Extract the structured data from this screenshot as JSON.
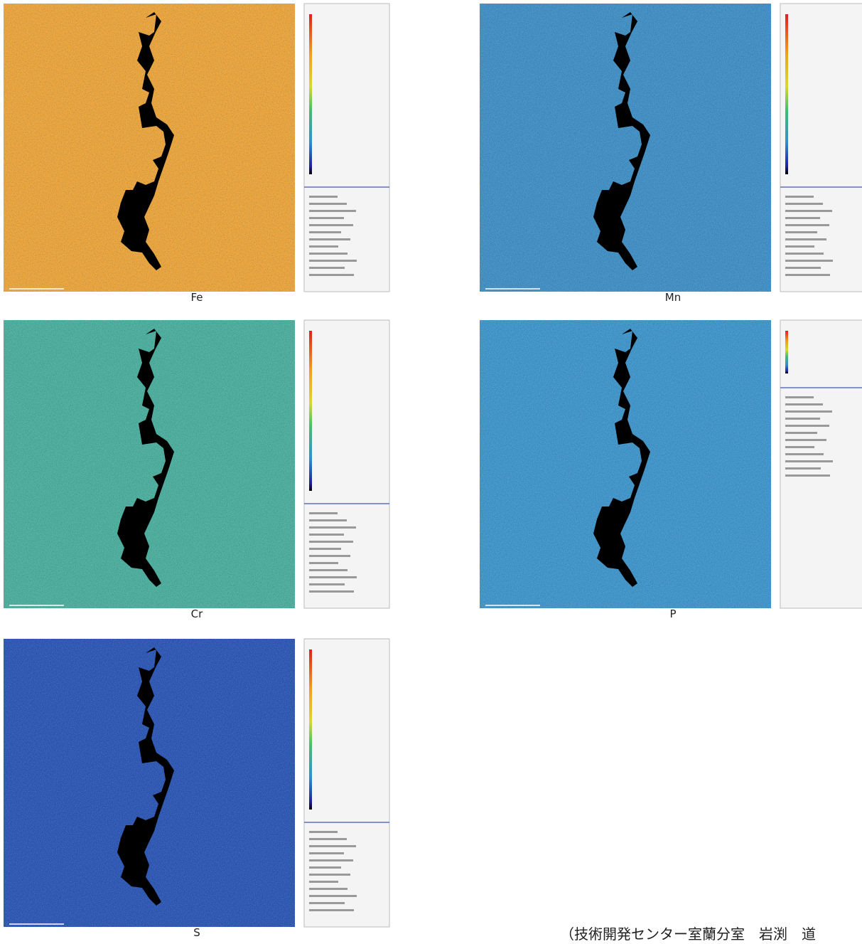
{
  "panels": [
    {
      "caption": "Fe"
    },
    {
      "caption": "Mn"
    },
    {
      "caption": "Cr"
    },
    {
      "caption": "P"
    },
    {
      "caption": "S"
    }
  ],
  "credit": "（技術開発センター室蘭分室　岩渕　道"
}
